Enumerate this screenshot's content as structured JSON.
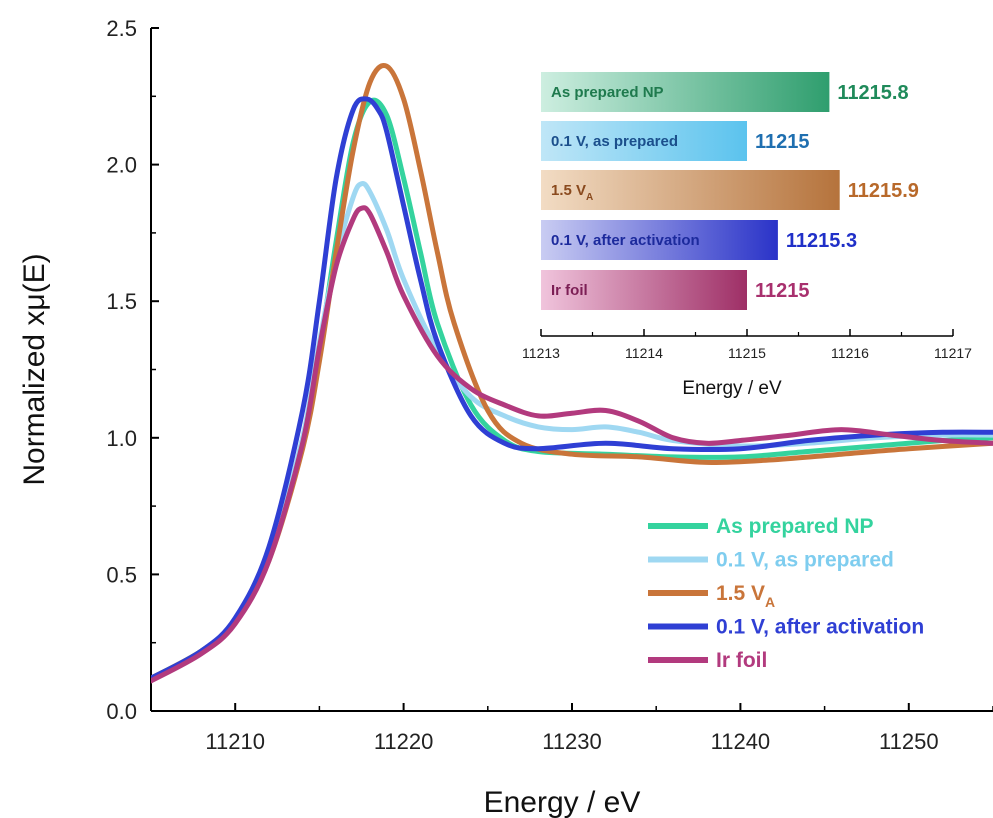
{
  "chart_data": [
    {
      "type": "line",
      "xlabel": "Energy / eV",
      "ylabel": "Normalized xμ(E)",
      "xlim": [
        11205,
        11255
      ],
      "ylim": [
        0,
        2.5
      ],
      "xticks": [
        "11210",
        "11220",
        "11230",
        "11240",
        "11250"
      ],
      "yticks": [
        "0.0",
        "0.5",
        "1.0",
        "1.5",
        "2.0",
        "2.5"
      ],
      "legend_position": "bottom-right",
      "series": [
        {
          "name": "As prepared NP",
          "color": "#34d39e",
          "x": [
            11205,
            11208,
            11210,
            11212,
            11214,
            11215,
            11216,
            11217,
            11218,
            11219,
            11220,
            11221,
            11222,
            11224,
            11226,
            11228,
            11232,
            11236,
            11240,
            11244,
            11248,
            11252,
            11255
          ],
          "y": [
            0.12,
            0.22,
            0.33,
            0.56,
            0.98,
            1.32,
            1.72,
            2.08,
            2.23,
            2.18,
            1.95,
            1.68,
            1.42,
            1.12,
            0.99,
            0.95,
            0.94,
            0.93,
            0.93,
            0.95,
            0.97,
            0.99,
            1.0
          ]
        },
        {
          "name": "0.1 V, as prepared",
          "color": "#9fd8f2",
          "x": [
            11205,
            11208,
            11210,
            11212,
            11214,
            11215,
            11216,
            11217,
            11217.5,
            11218,
            11219,
            11220,
            11222,
            11224,
            11226,
            11228,
            11230,
            11232,
            11234,
            11236,
            11240,
            11244,
            11248,
            11252,
            11255
          ],
          "y": [
            0.12,
            0.22,
            0.33,
            0.56,
            1.0,
            1.35,
            1.66,
            1.88,
            1.93,
            1.9,
            1.76,
            1.58,
            1.32,
            1.15,
            1.08,
            1.04,
            1.03,
            1.04,
            1.02,
            0.99,
            0.97,
            0.98,
            1.0,
            1.01,
            1.01
          ]
        },
        {
          "name": "1.5 V",
          "subscript": "A",
          "color": "#c9753a",
          "x": [
            11205,
            11208,
            11210,
            11212,
            11214,
            11215,
            11216,
            11217,
            11218,
            11219,
            11220,
            11221,
            11222,
            11223,
            11225,
            11227,
            11230,
            11234,
            11238,
            11242,
            11246,
            11250,
            11255
          ],
          "y": [
            0.12,
            0.22,
            0.33,
            0.55,
            0.96,
            1.28,
            1.68,
            2.05,
            2.3,
            2.36,
            2.24,
            1.98,
            1.68,
            1.42,
            1.1,
            0.98,
            0.94,
            0.93,
            0.91,
            0.92,
            0.94,
            0.96,
            0.98
          ]
        },
        {
          "name": "0.1 V, after activation",
          "color": "#2f3fd4",
          "x": [
            11205,
            11208,
            11210,
            11212,
            11214,
            11215,
            11216,
            11217,
            11217.8,
            11218.5,
            11219,
            11220,
            11221,
            11222,
            11224,
            11226,
            11228,
            11232,
            11236,
            11240,
            11244,
            11248,
            11252,
            11255
          ],
          "y": [
            0.12,
            0.22,
            0.34,
            0.6,
            1.1,
            1.5,
            1.95,
            2.2,
            2.24,
            2.2,
            2.12,
            1.85,
            1.58,
            1.35,
            1.08,
            0.98,
            0.96,
            0.98,
            0.96,
            0.96,
            0.99,
            1.01,
            1.02,
            1.02
          ]
        },
        {
          "name": "Ir foil",
          "color": "#b23a7e",
          "x": [
            11205,
            11208,
            11210,
            11212,
            11214,
            11215,
            11216,
            11217,
            11217.5,
            11218,
            11219,
            11220,
            11222,
            11224,
            11226,
            11228,
            11230,
            11232,
            11234,
            11236,
            11238,
            11240,
            11243,
            11246,
            11249,
            11252,
            11255
          ],
          "y": [
            0.11,
            0.21,
            0.32,
            0.55,
            0.98,
            1.33,
            1.63,
            1.8,
            1.84,
            1.82,
            1.68,
            1.52,
            1.3,
            1.18,
            1.12,
            1.08,
            1.09,
            1.1,
            1.06,
            1.0,
            0.98,
            0.99,
            1.01,
            1.03,
            1.01,
            0.99,
            0.98
          ]
        }
      ]
    },
    {
      "type": "bar",
      "orientation": "horizontal",
      "xlabel": "Energy / eV",
      "xlim": [
        11213,
        11217
      ],
      "xticks": [
        "11213",
        "11214",
        "11215",
        "11216",
        "11217"
      ],
      "categories": [
        "As prepared NP",
        "0.1 V, as prepared",
        "1.5 V",
        "0.1 V, after activation",
        "Ir foil"
      ],
      "category_subscripts": [
        "",
        "",
        "A",
        "",
        ""
      ],
      "values": [
        11215.8,
        11215,
        11215.9,
        11215.3,
        11215
      ],
      "value_labels": [
        "11215.8",
        "11215",
        "11215.9",
        "11215.3",
        "11215"
      ],
      "label_colors": [
        "#1f7a4e",
        "#1b4f8c",
        "#8a4a1e",
        "#1c2a9c",
        "#7c1f55"
      ],
      "value_colors": [
        "#1f8a5a",
        "#1f6fb0",
        "#b8692a",
        "#2030c8",
        "#a8306e"
      ],
      "bar_colors_light": [
        "#cdeee0",
        "#bfe6f7",
        "#f2dcc4",
        "#c9ccf2",
        "#f0c4dc"
      ],
      "bar_colors_dark": [
        "#2f9e6e",
        "#5bc3ee",
        "#b5733c",
        "#2a33c8",
        "#9e2f66"
      ]
    }
  ]
}
